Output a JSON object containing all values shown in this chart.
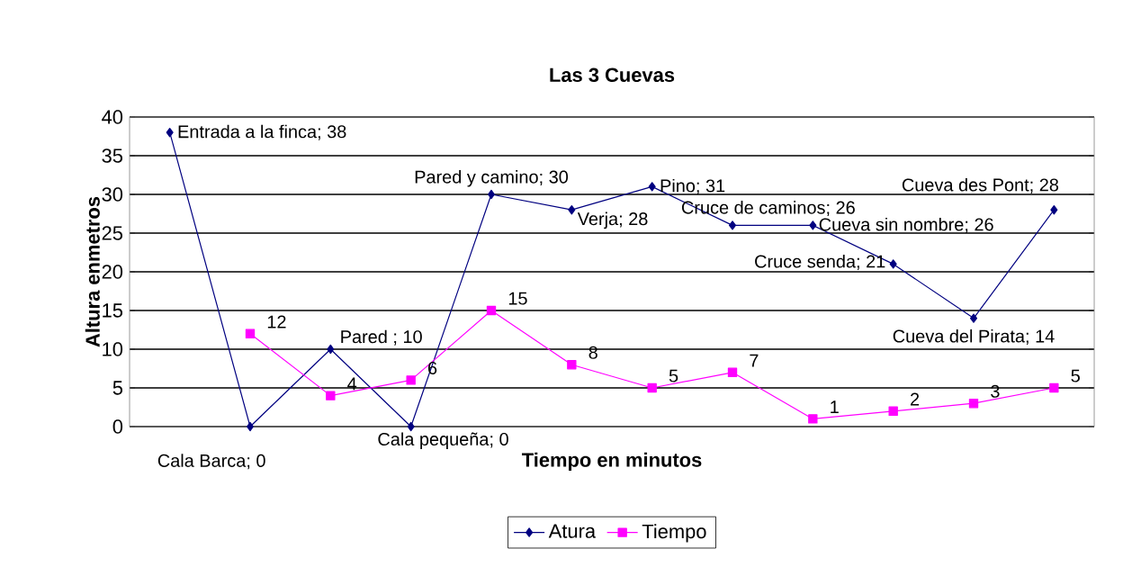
{
  "chart_data": {
    "type": "line",
    "title": "Las 3 Cuevas",
    "xlabel": "Tiempo en minutos",
    "ylabel": "Altura enmetros",
    "categories": [
      null,
      null,
      null,
      null,
      null,
      null,
      null,
      null,
      null,
      null,
      null,
      null
    ],
    "series": [
      {
        "name": "Atura",
        "color": "#000080",
        "marker": "diamond",
        "values": [
          38,
          0,
          10,
          0,
          30,
          28,
          31,
          26,
          26,
          21,
          14,
          28
        ],
        "value_labels": [
          "Entrada a la finca; 38",
          "Cala Barca; 0",
          "Pared ; 10",
          "Cala pequeña; 0",
          "Pared y camino; 30",
          "Verja; 28",
          "Pino; 31",
          "Cruce de caminos; 26",
          "Cueva sin nombre; 26",
          "Cruce senda; 21",
          "Cueva del Pirata; 14",
          "Cueva des Pont; 28"
        ]
      },
      {
        "name": "Tiempo",
        "color": "#ff00ff",
        "marker": "square",
        "values": [
          null,
          12,
          4,
          6,
          15,
          8,
          5,
          7,
          1,
          2,
          3,
          5
        ],
        "value_labels": [
          null,
          "12",
          "4",
          "6",
          "15",
          "8",
          "5",
          "7",
          "1",
          "2",
          "3",
          "5"
        ]
      }
    ],
    "ylim": [
      0,
      40
    ],
    "yticks": [
      0,
      5,
      10,
      15,
      20,
      25,
      30,
      35,
      40
    ],
    "grid": "y",
    "legend": "bottom",
    "tick_labels": "y"
  }
}
